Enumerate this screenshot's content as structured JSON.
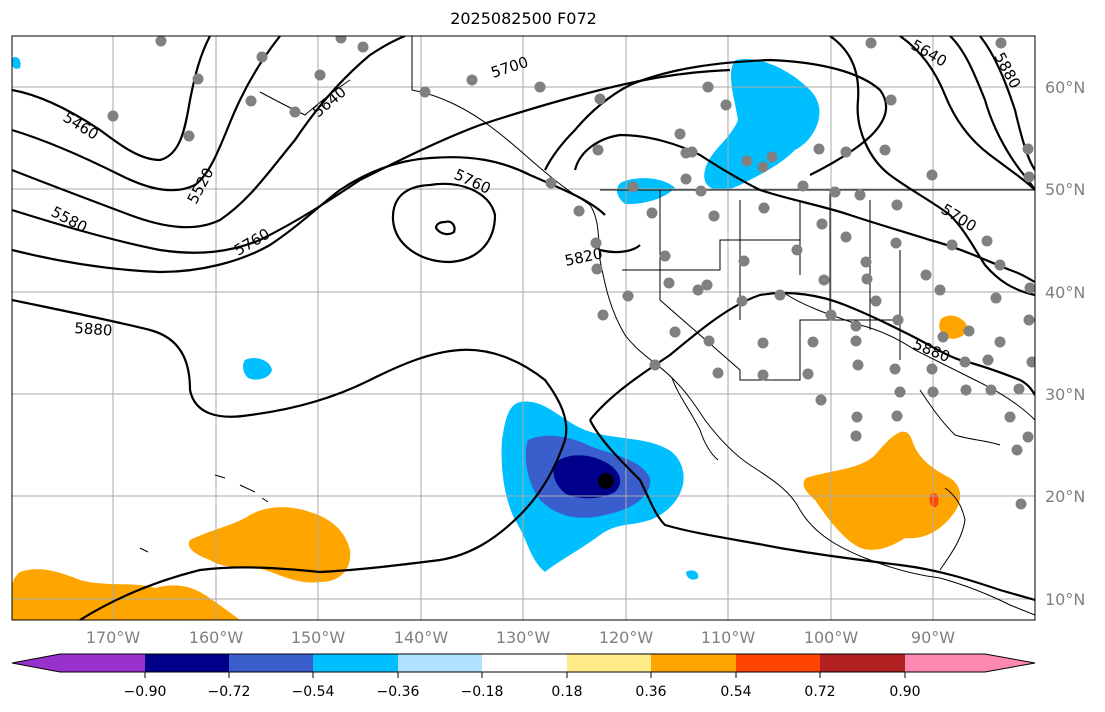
{
  "title": "2025082500 F072",
  "lat_labels": [
    "60°N",
    "50°N",
    "40°N",
    "30°N",
    "20°N",
    "10°N"
  ],
  "lon_labels": [
    "170°W",
    "160°W",
    "150°W",
    "140°W",
    "130°W",
    "120°W",
    "110°W",
    "100°W",
    "90°W"
  ],
  "colorbar": {
    "colors": [
      "#9932cc",
      "#00008b",
      "#3a5fcd",
      "#00bfff",
      "#b0e2ff",
      "#ffffff",
      "#ffeb8a",
      "#ffa500",
      "#ff4500",
      "#b22222",
      "#ff88b0"
    ],
    "tick_labels": [
      "−0.90",
      "−0.72",
      "−0.54",
      "−0.36",
      "−0.18",
      "0.18",
      "0.36",
      "0.54",
      "0.72",
      "0.90"
    ]
  },
  "contour_labels": [
    "5460",
    "5520",
    "5580",
    "5640",
    "5700",
    "5760",
    "5760",
    "5820",
    "5880",
    "5880",
    "5640",
    "5880",
    "5700"
  ],
  "colors": {
    "negative_core": "#00008b",
    "negative_mid": "#3a5fcd",
    "negative_light": "#00bfff",
    "positive": "#ffa500",
    "positive_strong": "#ff4500",
    "station": "#808080"
  }
}
